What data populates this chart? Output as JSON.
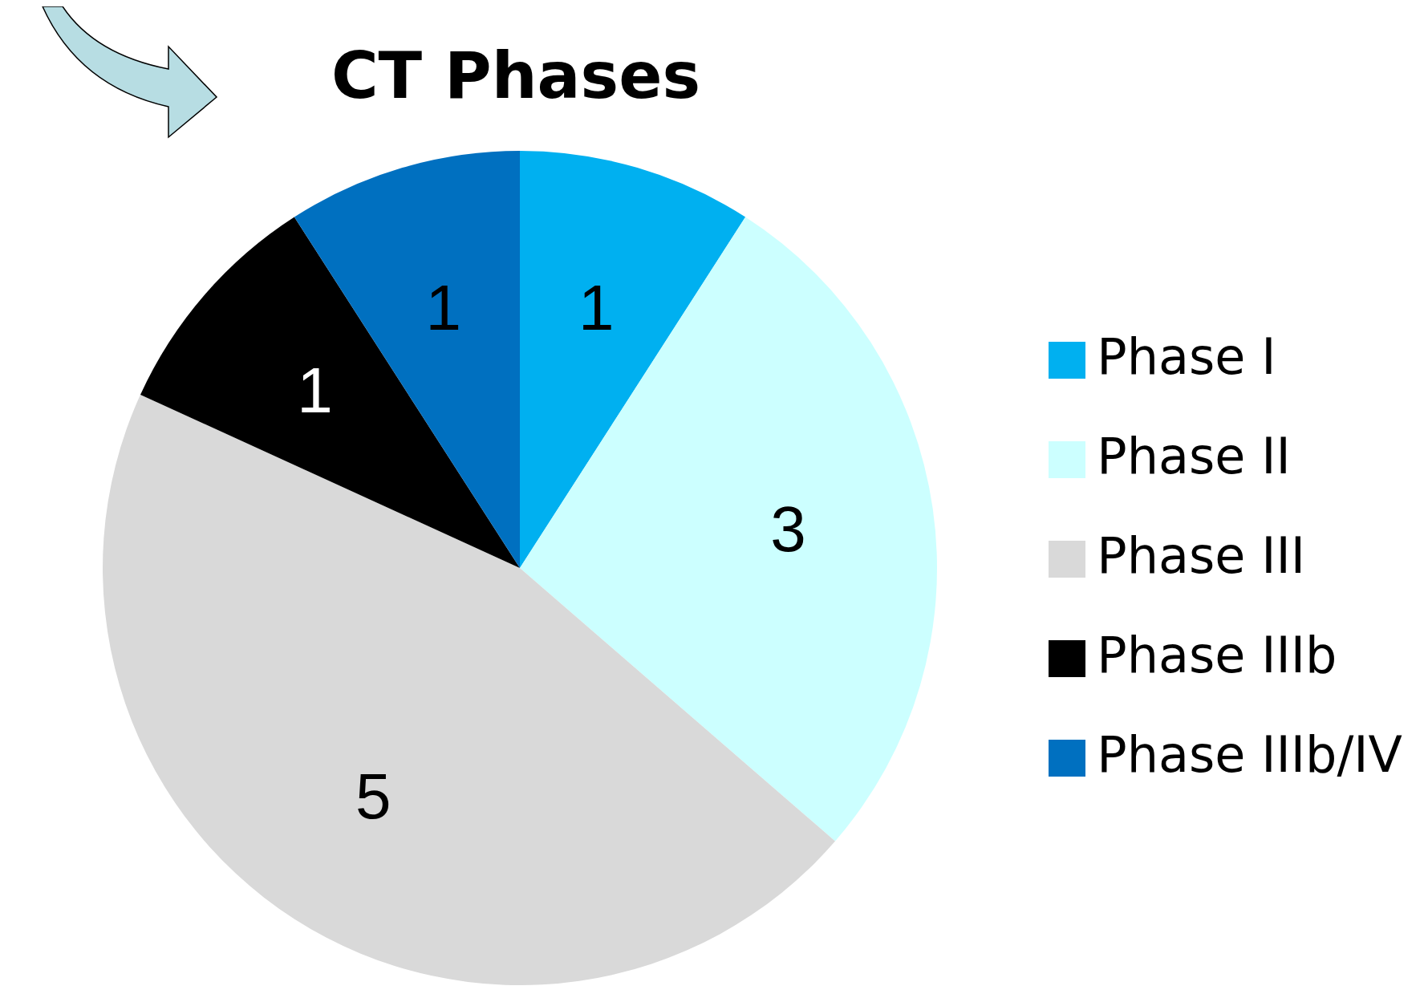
{
  "chart_data": {
    "type": "pie",
    "title": "CT Phases",
    "categories": [
      "Phase I",
      "Phase II",
      "Phase III",
      "Phase IIIb",
      "Phase IIIb/IV"
    ],
    "values": [
      1,
      3,
      5,
      1,
      1
    ],
    "colors": [
      "#00b0f0",
      "#ccffff",
      "#d9d9d9",
      "#000000",
      "#0070c0"
    ],
    "data_labels": true,
    "legend": "right"
  }
}
